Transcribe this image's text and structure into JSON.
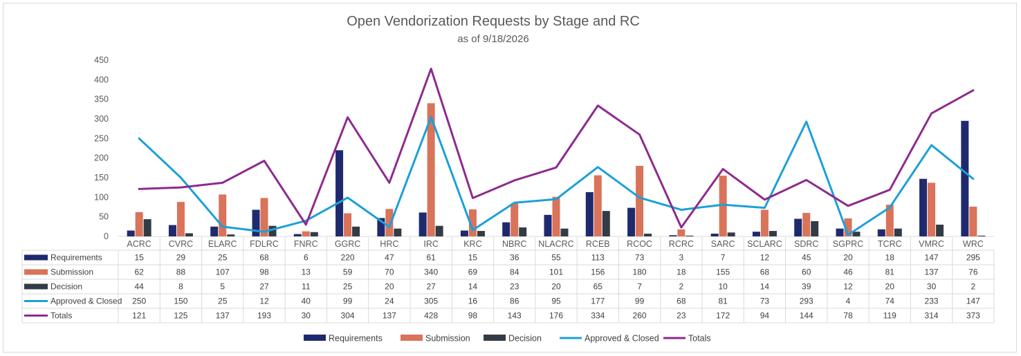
{
  "chart_data": {
    "type": "bar",
    "title": "Open Vendorization Requests by Stage and RC",
    "subtitle": "as of 9/18/2026",
    "categories": [
      "ACRC",
      "CVRC",
      "ELARC",
      "FDLRC",
      "FNRC",
      "GGRC",
      "HRC",
      "IRC",
      "KRC",
      "NBRC",
      "NLACRC",
      "RCEB",
      "RCOC",
      "RCRC",
      "SARC",
      "SCLARC",
      "SDRC",
      "SGPRC",
      "TCRC",
      "VMRC",
      "WRC"
    ],
    "ylim": [
      0,
      450
    ],
    "yticks": [
      0,
      50,
      100,
      150,
      200,
      250,
      300,
      350,
      400,
      450
    ],
    "grid": false,
    "legend_position": "bottom",
    "data_table": true,
    "series": [
      {
        "name": "Requirements",
        "kind": "bar",
        "color": "#1f2a6e",
        "values": [
          15,
          29,
          25,
          68,
          6,
          220,
          47,
          61,
          15,
          36,
          55,
          113,
          73,
          3,
          7,
          12,
          45,
          20,
          18,
          147,
          295
        ]
      },
      {
        "name": "Submission",
        "kind": "bar",
        "color": "#d97359",
        "values": [
          62,
          88,
          107,
          98,
          13,
          59,
          70,
          340,
          69,
          84,
          101,
          156,
          180,
          18,
          155,
          68,
          60,
          46,
          81,
          137,
          76
        ]
      },
      {
        "name": "Decision",
        "kind": "bar",
        "color": "#333c45",
        "values": [
          44,
          8,
          5,
          27,
          11,
          25,
          20,
          27,
          14,
          23,
          20,
          65,
          7,
          2,
          10,
          14,
          39,
          12,
          20,
          30,
          2
        ]
      },
      {
        "name": "Approved & Closed",
        "kind": "line",
        "color": "#1ba0d8",
        "values": [
          250,
          150,
          25,
          12,
          40,
          99,
          24,
          305,
          16,
          86,
          95,
          177,
          99,
          68,
          81,
          73,
          293,
          4,
          74,
          233,
          147
        ]
      },
      {
        "name": "Totals",
        "kind": "line",
        "color": "#8e2a8e",
        "values": [
          121,
          125,
          137,
          193,
          30,
          304,
          137,
          428,
          98,
          143,
          176,
          334,
          260,
          23,
          172,
          94,
          144,
          78,
          119,
          314,
          373
        ]
      }
    ]
  }
}
